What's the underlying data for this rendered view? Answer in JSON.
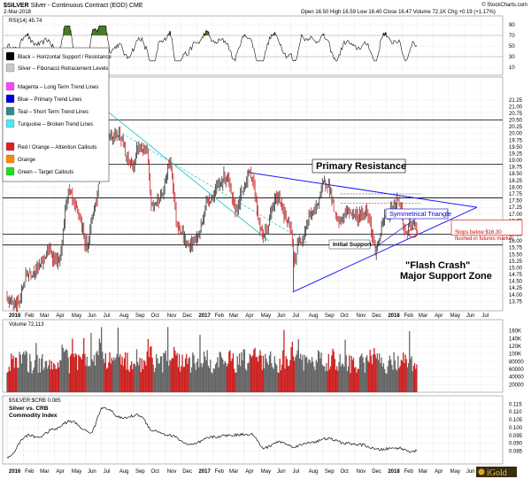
{
  "header": {
    "symbol": "$SILVER",
    "description": "Silver - Continuous Contract (EOD)",
    "exchange": "CME",
    "date": "2-Mar-2018",
    "quote": "Open 16.50  High 16.59  Low 16.40  Close 16.47  Volume 72.1K  Chg +0.19 (+1.17%)",
    "copyright": "© StockCharts.com"
  },
  "legend": [
    {
      "color": "#000000",
      "label": "Black – Horizontal Support / Resistance"
    },
    {
      "color": "#c8c8c8",
      "label": "Silver – Fibonacci Retracement Levels"
    },
    {
      "color": "#ff44ff",
      "label": "Magenta – Long Term Trend Lines"
    },
    {
      "color": "#0000dd",
      "label": "Blue – Primary Trend Lines"
    },
    {
      "color": "#2e8b8b",
      "label": "Teal – Short Term Trend Lines"
    },
    {
      "color": "#55e6ee",
      "label": "Turquoise – Broken Trend Lines"
    },
    {
      "color": "#e02020",
      "label": "Red / Orange – Attention Callouts"
    },
    {
      "color": "#ff8800",
      "label": "Orange"
    },
    {
      "color": "#22dd22",
      "label": "Green – Target Callouts"
    }
  ],
  "rsi_label": "RSI(14) 45.74",
  "volume_label": "Volume 72,113",
  "ratio_label": "$SILVER:$CRB 0.085",
  "ratio_title_1": "Silver vs. CRB",
  "ratio_title_2": "Commodity Index",
  "watermark": "iGold",
  "chart_data": [
    {
      "type": "line",
      "panel": "RSI(14)",
      "ylim": [
        0,
        100
      ],
      "yticks": [
        10,
        30,
        50,
        70,
        90
      ],
      "reference_levels": [
        30,
        70
      ],
      "last_value": 45.74
    },
    {
      "type": "line",
      "panel": "price",
      "title": "$SILVER Silver - Continuous Contract (EOD)",
      "ylim": [
        13.5,
        22.0
      ],
      "yticks": [
        "13.75",
        "14.00",
        "14.25",
        "14.50",
        "14.75",
        "15.00",
        "15.25",
        "15.50",
        "15.75",
        "16.00",
        "16.25",
        "16.50",
        "16.75",
        "17.00",
        "17.25",
        "17.50",
        "17.75",
        "18.00",
        "18.25",
        "18.50",
        "18.75",
        "19.00",
        "19.25",
        "19.50",
        "19.75",
        "20.00",
        "20.25",
        "20.50",
        "20.75",
        "21.00",
        "21.25"
      ],
      "x_start": "2016-01-01",
      "x_end": "2018-07-31",
      "xticks": [
        "2016",
        "Feb",
        "Mar",
        "Apr",
        "May",
        "Jun",
        "Jul",
        "Aug",
        "Sep",
        "Oct",
        "Nov",
        "Dec",
        "2017",
        "Feb",
        "Mar",
        "Apr",
        "May",
        "Jun",
        "Jul",
        "Aug",
        "Sep",
        "Oct",
        "Nov",
        "Dec",
        "2018",
        "Feb",
        "Mar",
        "Apr",
        "May",
        "Jun",
        "Jul"
      ],
      "series": [
        {
          "anchors": [
            [
              "2016-01-01",
              13.9
            ],
            [
              "2016-01-20",
              13.6
            ],
            [
              "2016-02-10",
              14.8
            ],
            [
              "2016-03-01",
              15.0
            ],
            [
              "2016-03-20",
              15.6
            ],
            [
              "2016-04-10",
              15.2
            ],
            [
              "2016-04-28",
              17.8
            ],
            [
              "2016-05-15",
              17.1
            ],
            [
              "2016-06-02",
              15.9
            ],
            [
              "2016-06-20",
              17.4
            ],
            [
              "2016-07-04",
              20.3
            ],
            [
              "2016-07-20",
              19.9
            ],
            [
              "2016-08-05",
              20.0
            ],
            [
              "2016-08-20",
              19.0
            ],
            [
              "2016-09-01",
              18.8
            ],
            [
              "2016-09-10",
              19.5
            ],
            [
              "2016-09-25",
              19.3
            ],
            [
              "2016-10-07",
              17.3
            ],
            [
              "2016-10-25",
              17.7
            ],
            [
              "2016-11-10",
              18.9
            ],
            [
              "2016-11-25",
              16.6
            ],
            [
              "2016-12-15",
              15.8
            ],
            [
              "2016-12-31",
              16.1
            ],
            [
              "2017-01-25",
              17.6
            ],
            [
              "2017-02-27",
              18.4
            ],
            [
              "2017-03-15",
              17.2
            ],
            [
              "2017-04-14",
              18.5
            ],
            [
              "2017-05-08",
              16.2
            ],
            [
              "2017-06-06",
              17.6
            ],
            [
              "2017-06-30",
              16.5
            ],
            [
              "2017-07-07",
              15.3
            ],
            [
              "2017-07-20",
              16.1
            ],
            [
              "2017-08-10",
              17.0
            ],
            [
              "2017-09-08",
              18.2
            ],
            [
              "2017-09-30",
              16.7
            ],
            [
              "2017-10-20",
              17.1
            ],
            [
              "2017-11-10",
              16.9
            ],
            [
              "2017-11-25",
              17.1
            ],
            [
              "2017-12-12",
              15.7
            ],
            [
              "2017-12-31",
              16.9
            ],
            [
              "2018-01-25",
              17.5
            ],
            [
              "2018-02-08",
              16.3
            ],
            [
              "2018-02-20",
              16.6
            ],
            [
              "2018-03-02",
              16.47
            ]
          ]
        }
      ],
      "horizontal_levels": [
        15.85,
        16.25,
        17.6,
        18.85,
        20.5
      ]
    },
    {
      "type": "bar",
      "panel": "Volume",
      "ylim": [
        0,
        180000
      ],
      "yticks": [
        "20000",
        "40000",
        "60000",
        "80000",
        "100K",
        "120K",
        "140K",
        "160K"
      ],
      "last_value": 72113
    },
    {
      "type": "line",
      "panel": "$SILVER:$CRB",
      "ylim": [
        0.078,
        0.118
      ],
      "yticks": [
        "0.085",
        "0.090",
        "0.095",
        "0.100",
        "0.105",
        "0.110",
        "0.115"
      ],
      "series": [
        {
          "anchors": [
            [
              "2016-01-01",
              0.081
            ],
            [
              "2016-02-10",
              0.095
            ],
            [
              "2016-03-01",
              0.094
            ],
            [
              "2016-04-01",
              0.099
            ],
            [
              "2016-05-01",
              0.104
            ],
            [
              "2016-06-10",
              0.097
            ],
            [
              "2016-07-05",
              0.113
            ],
            [
              "2016-08-10",
              0.106
            ],
            [
              "2016-09-10",
              0.108
            ],
            [
              "2016-10-10",
              0.098
            ],
            [
              "2016-11-10",
              0.095
            ],
            [
              "2016-12-20",
              0.089
            ],
            [
              "2017-02-01",
              0.094
            ],
            [
              "2017-03-01",
              0.095
            ],
            [
              "2017-04-15",
              0.096
            ],
            [
              "2017-05-10",
              0.087
            ],
            [
              "2017-06-10",
              0.091
            ],
            [
              "2017-07-05",
              0.088
            ],
            [
              "2017-08-15",
              0.091
            ],
            [
              "2017-09-10",
              0.093
            ],
            [
              "2017-10-15",
              0.09
            ],
            [
              "2017-11-15",
              0.089
            ],
            [
              "2017-12-15",
              0.086
            ],
            [
              "2018-01-25",
              0.087
            ],
            [
              "2018-02-15",
              0.085
            ],
            [
              "2018-03-02",
              0.085
            ]
          ]
        }
      ]
    }
  ],
  "annotations": {
    "primary_resistance": "Primary Resistance",
    "symmetrical_triangle": "Symmetrical Triangle",
    "initial_support": "Initial Support",
    "flash_crash_1": "\"Flash Crash\"",
    "flash_crash_2": "Major Support Zone",
    "stops_1": "Stops below $16.30",
    "stops_2": "flushed in futures market."
  },
  "colors": {
    "price_line": "#222222",
    "price_up": "#333333",
    "price_down": "#cc2222",
    "primary_trend": "#1a1aff",
    "teal_line": "#40c8c8",
    "callout": "#e02020",
    "rsi_line": "#111111",
    "rsi_fill": "#4a7a2a",
    "volume_up": "#666666",
    "volume_down": "#cc2222"
  }
}
